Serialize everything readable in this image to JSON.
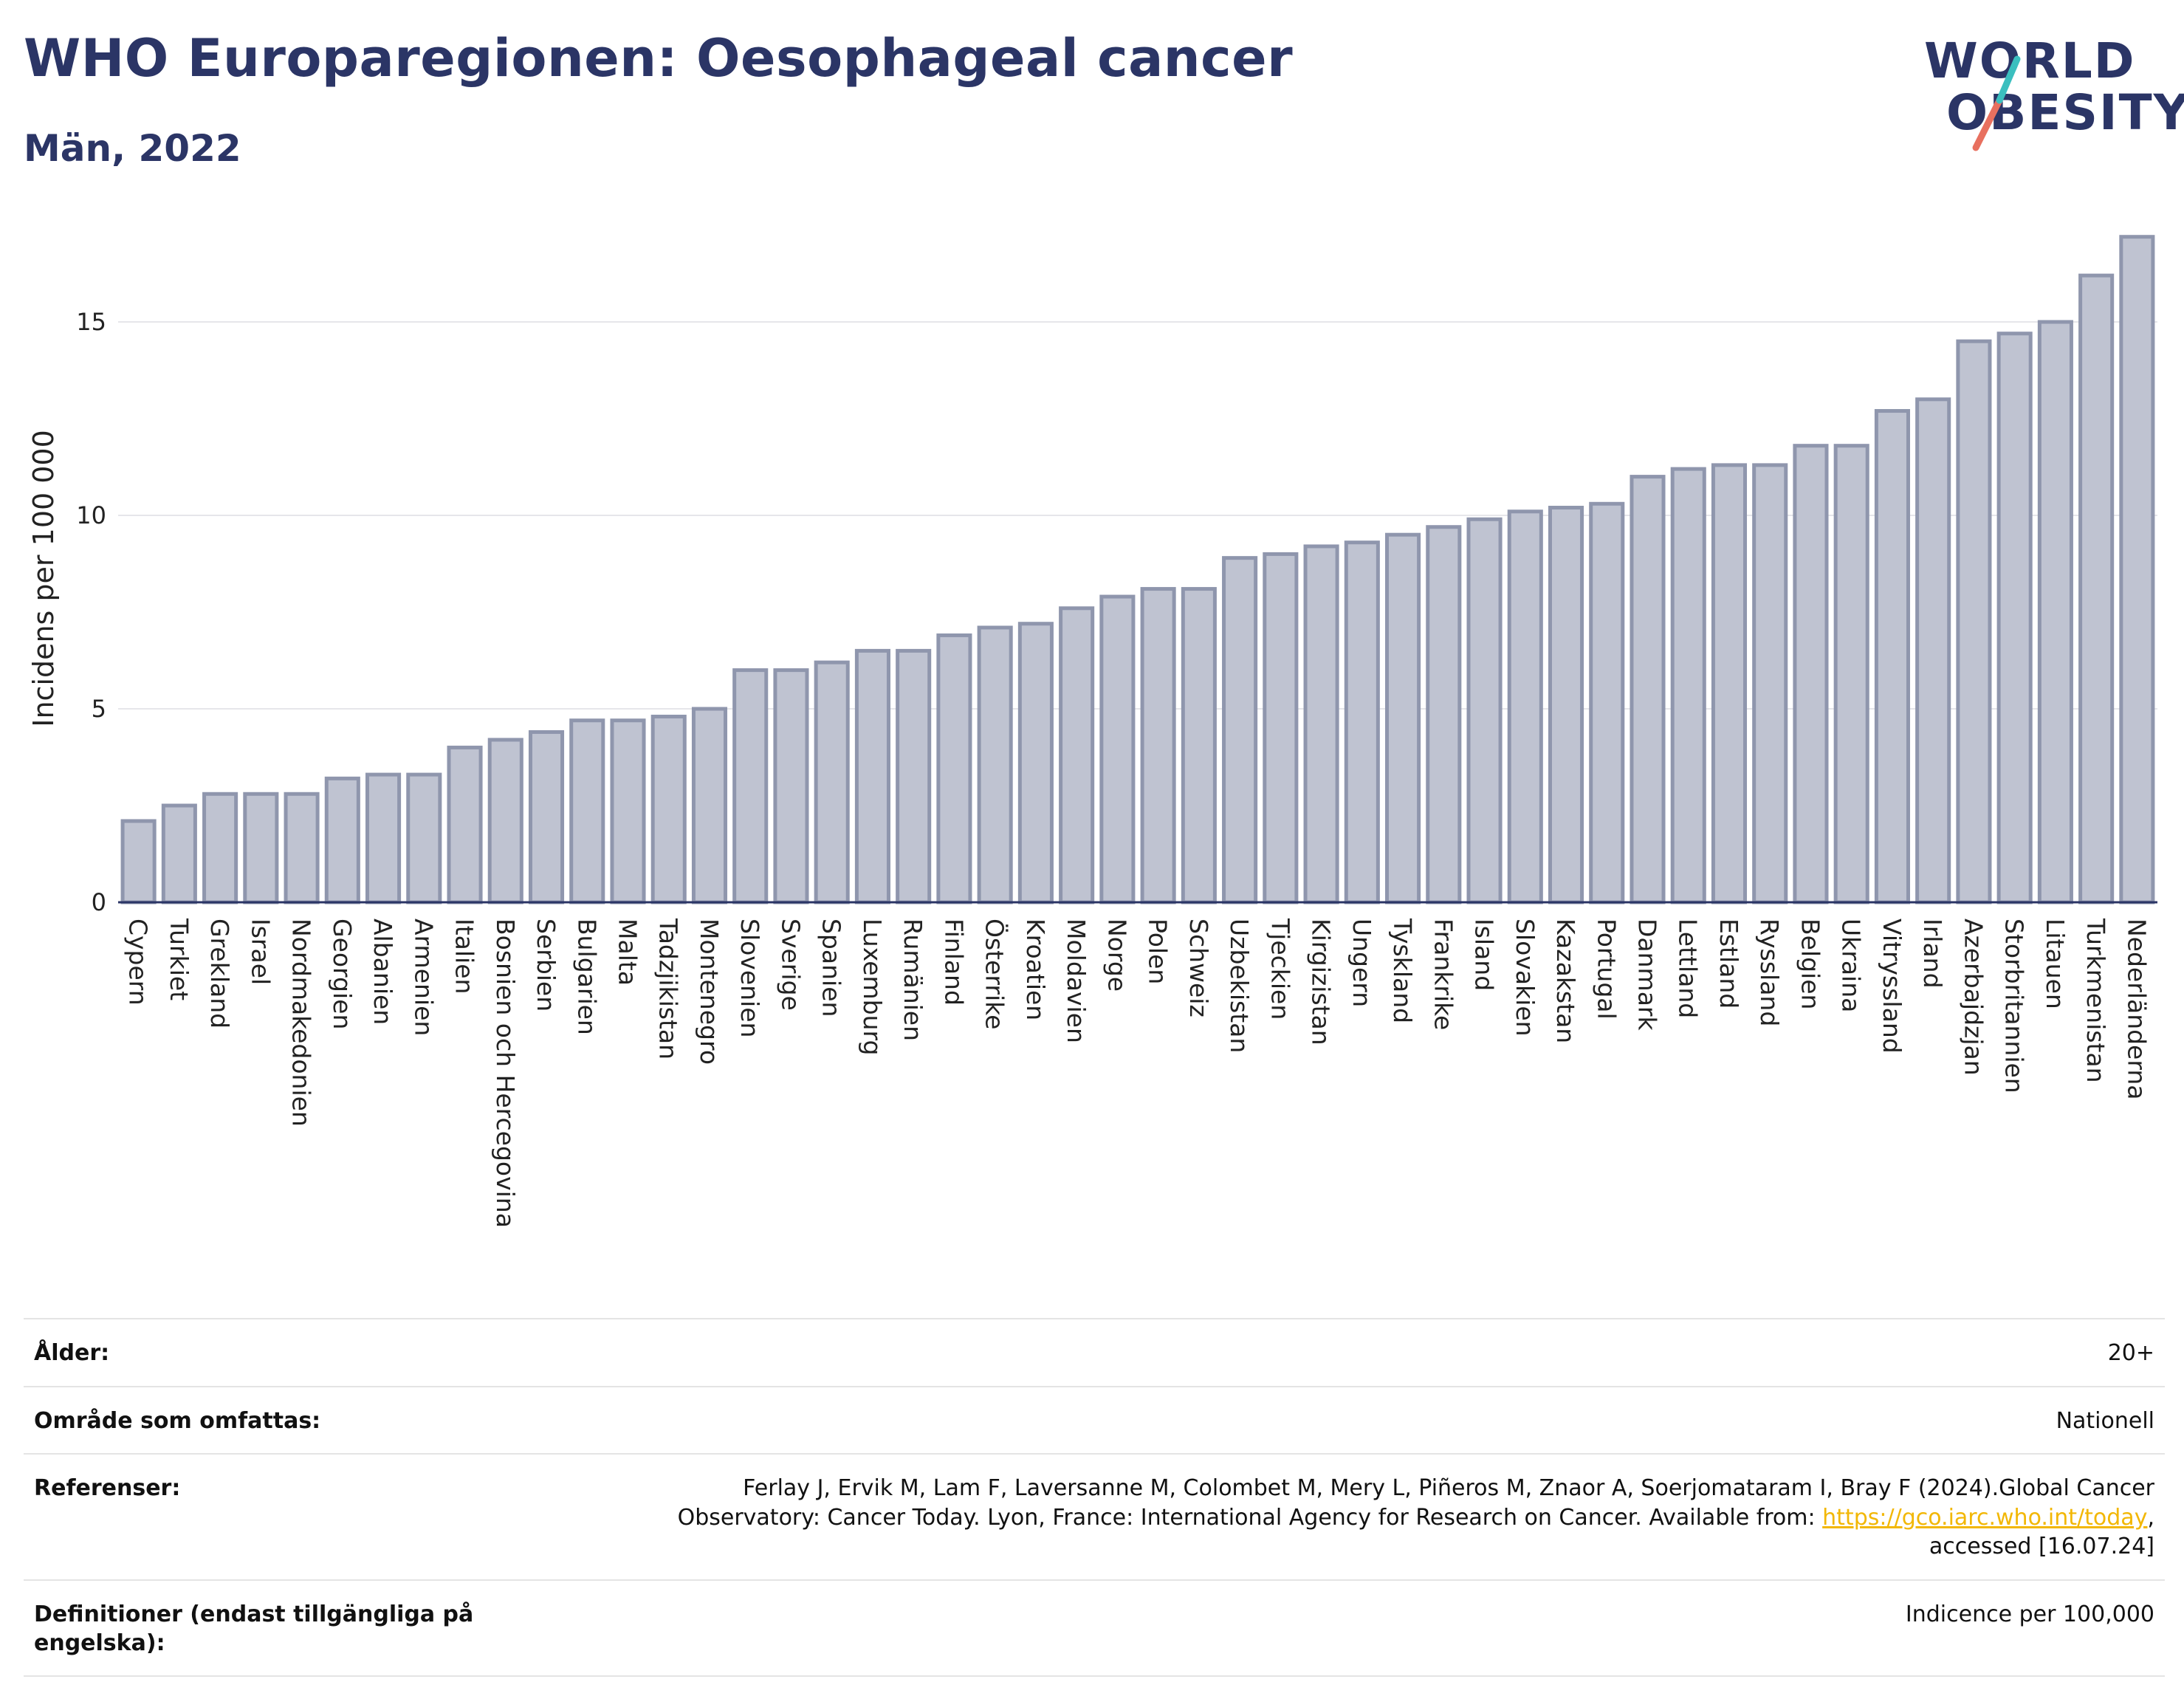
{
  "header": {
    "title": "WHO Europaregionen: Oesophageal cancer",
    "subtitle": "Män, 2022"
  },
  "logo": {
    "line1": "WORLD",
    "line2": "OBESITY",
    "colors": [
      "#2b3566",
      "#3bbfbf",
      "#e8705f"
    ]
  },
  "chart_data": {
    "type": "bar",
    "title": "WHO Europaregionen: Oesophageal cancer",
    "subtitle": "Män, 2022",
    "xlabel": "",
    "ylabel": "Incidens per 100 000",
    "ylim": [
      0,
      17.5
    ],
    "yticks": [
      0,
      5,
      10,
      15
    ],
    "grid": true,
    "bar_fill": "#bfc3d1",
    "bar_stroke": "#8f96ad",
    "categories": [
      "Cypern",
      "Turkiet",
      "Grekland",
      "Israel",
      "Nordmakedonien",
      "Georgien",
      "Albanien",
      "Armenien",
      "Italien",
      "Bosnien och Hercegovina",
      "Serbien",
      "Bulgarien",
      "Malta",
      "Tadzjikistan",
      "Montenegro",
      "Slovenien",
      "Sverige",
      "Spanien",
      "Luxemburg",
      "Rumänien",
      "Finland",
      "Österrike",
      "Kroatien",
      "Moldavien",
      "Norge",
      "Polen",
      "Schweiz",
      "Uzbekistan",
      "Tjeckien",
      "Kirgizistan",
      "Ungern",
      "Tyskland",
      "Frankrike",
      "Island",
      "Slovakien",
      "Kazakstan",
      "Portugal",
      "Danmark",
      "Lettland",
      "Estland",
      "Ryssland",
      "Belgien",
      "Ukraina",
      "Vitryssland",
      "Irland",
      "Azerbajdzjan",
      "Storbritannien",
      "Litauen",
      "Turkmenistan",
      "Nederländerna"
    ],
    "values": [
      2.1,
      2.5,
      2.8,
      2.8,
      2.8,
      3.2,
      3.3,
      3.3,
      4.0,
      4.2,
      4.4,
      4.7,
      4.7,
      4.8,
      5.0,
      6.0,
      6.0,
      6.2,
      6.5,
      6.5,
      6.9,
      7.1,
      7.2,
      7.6,
      7.9,
      8.1,
      8.1,
      8.9,
      9.0,
      9.2,
      9.3,
      9.5,
      9.7,
      9.9,
      10.1,
      10.2,
      10.3,
      11.0,
      11.2,
      11.3,
      11.3,
      11.8,
      11.8,
      12.7,
      13.0,
      14.5,
      14.7,
      15.0,
      16.2,
      17.2
    ]
  },
  "meta": {
    "age_label": "Ålder:",
    "age_value": "20+",
    "area_label": "Område som omfattas:",
    "area_value": "Nationell",
    "ref_label": "Referenser:",
    "ref_text1": "Ferlay J, Ervik M, Lam F, Laversanne M, Colombet M, Mery L, Piñeros M, Znaor A, Soerjomataram I, Bray F (2024).Global Cancer Observatory: Cancer Today. Lyon, France: International Agency for Research on Cancer. Available from: ",
    "ref_link": "https://gco.iarc.who.int/today",
    "ref_text2": ", accessed [16.07.24]",
    "def_label": "Definitioner (endast tillgängliga på engelska):",
    "def_value": "Indicence per 100,000"
  }
}
